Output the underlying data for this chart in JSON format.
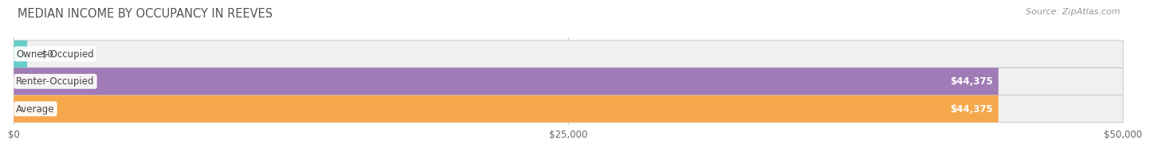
{
  "title": "MEDIAN INCOME BY OCCUPANCY IN REEVES",
  "source": "Source: ZipAtlas.com",
  "categories": [
    "Owner-Occupied",
    "Renter-Occupied",
    "Average"
  ],
  "values": [
    0,
    44375,
    44375
  ],
  "bar_colors": [
    "#65cec9",
    "#a07bb5",
    "#f5a84b"
  ],
  "value_labels": [
    "$0",
    "$44,375",
    "$44,375"
  ],
  "xlim": [
    0,
    50000
  ],
  "xtick_labels": [
    "$0",
    "$25,000",
    "$50,000"
  ],
  "xtick_values": [
    0,
    25000,
    50000
  ],
  "bar_height": 0.52,
  "background_color": "#ffffff",
  "plot_bg_color": "#f7f7f7",
  "title_fontsize": 10.5,
  "source_fontsize": 8,
  "label_fontsize": 8.5,
  "tick_fontsize": 8.5,
  "bar_border_color": "#cccccc",
  "grid_color": "#cccccc"
}
